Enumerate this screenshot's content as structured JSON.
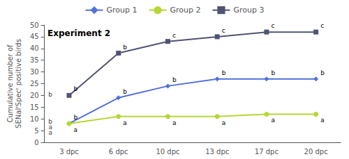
{
  "chart_data": {
    "type": "line",
    "categories": [
      "3 dpc",
      "6 dpc",
      "10 dpc",
      "13 dpc",
      "17 dpc",
      "20 dpc"
    ],
    "series": [
      {
        "name": "Group 1",
        "values": [
          8,
          19,
          24,
          27,
          27,
          27
        ],
        "marker": "diamond",
        "point_labels": [
          "b",
          "b",
          "b",
          "b",
          "b",
          "b"
        ]
      },
      {
        "name": "Group 2",
        "values": [
          8,
          11,
          11,
          11,
          12,
          12
        ],
        "marker": "circle",
        "point_labels": [
          "a",
          "a",
          "a",
          "a",
          "a",
          "a"
        ]
      },
      {
        "name": "Group 3",
        "values": [
          20,
          38,
          43,
          45,
          47,
          47
        ],
        "marker": "square",
        "point_labels": [
          "b",
          "b",
          "c",
          "c",
          "c",
          "c"
        ]
      }
    ],
    "ylabel": "Cumulative number of\nSENalʳSpecʳ positive birds",
    "annotations": [
      {
        "text": "Experiment 2"
      },
      {
        "text": "b",
        "y": 20.5
      },
      {
        "text": "b",
        "y": 9.0
      },
      {
        "text": "a",
        "y": 6.5
      },
      {
        "text": "a",
        "y": 4.0
      }
    ],
    "ylim": [
      0,
      50
    ],
    "yticks": [
      0,
      5,
      10,
      15,
      20,
      25,
      30,
      35,
      40,
      45,
      50
    ],
    "grid": false,
    "legend": "top"
  }
}
